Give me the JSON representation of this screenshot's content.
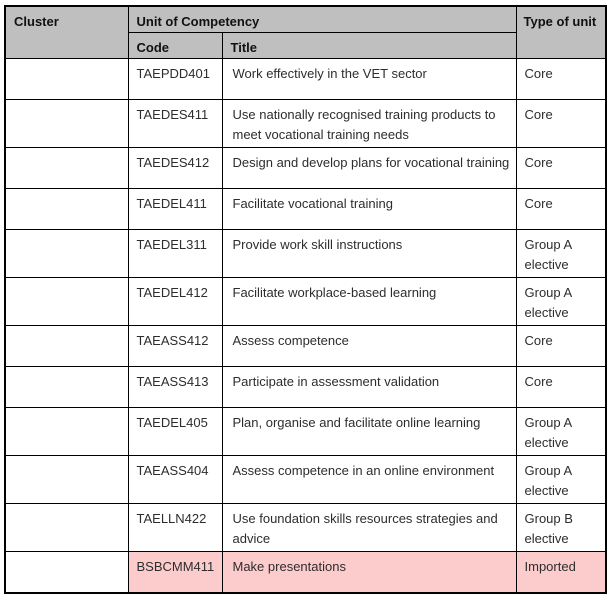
{
  "page": {
    "background": "#ffffff"
  },
  "table": {
    "border_color": "#000000",
    "header_bg": "#bfbfbf",
    "highlight_bg": "#fccbcb",
    "headers": {
      "cluster": "Cluster",
      "unit_of_competency": "Unit of Competency",
      "code": "Code",
      "title": "Title",
      "type_of_unit": "Type of unit"
    },
    "rows": [
      {
        "cluster": "",
        "code": "TAEPDD401",
        "title": "Work effectively in the VET sector",
        "type": "Core",
        "highlighted": false
      },
      {
        "cluster": "",
        "code": "TAEDES411",
        "title": "Use nationally recognised training products to meet vocational training needs",
        "type": "Core",
        "highlighted": false
      },
      {
        "cluster": "",
        "code": "TAEDES412",
        "title": "Design and develop plans for vocational training",
        "type": "Core",
        "highlighted": false
      },
      {
        "cluster": "",
        "code": "TAEDEL411",
        "title": "Facilitate vocational training",
        "type": "Core",
        "highlighted": false
      },
      {
        "cluster": "",
        "code": "TAEDEL311",
        "title": "Provide work skill instructions",
        "type": "Group A elective",
        "highlighted": false
      },
      {
        "cluster": "",
        "code": "TAEDEL412",
        "title": "Facilitate workplace-based learning",
        "type": "Group A elective",
        "highlighted": false
      },
      {
        "cluster": "",
        "code": "TAEASS412",
        "title": "Assess competence",
        "type": "Core",
        "highlighted": false
      },
      {
        "cluster": "",
        "code": "TAEASS413",
        "title": "Participate in assessment validation",
        "type": "Core",
        "highlighted": false
      },
      {
        "cluster": "",
        "code": "TAEDEL405",
        "title": "Plan, organise and facilitate online learning",
        "type": "Group A elective",
        "highlighted": false
      },
      {
        "cluster": "",
        "code": "TAEASS404",
        "title": "Assess competence in an online environment",
        "type": "Group A elective",
        "highlighted": false
      },
      {
        "cluster": "",
        "code": "TAELLN422",
        "title": "Use foundation skills resources strategies and advice",
        "type": "Group B elective",
        "highlighted": false
      },
      {
        "cluster": "",
        "code": "BSBCMM411",
        "title": "Make presentations",
        "type": "Imported",
        "highlighted": true
      }
    ]
  }
}
